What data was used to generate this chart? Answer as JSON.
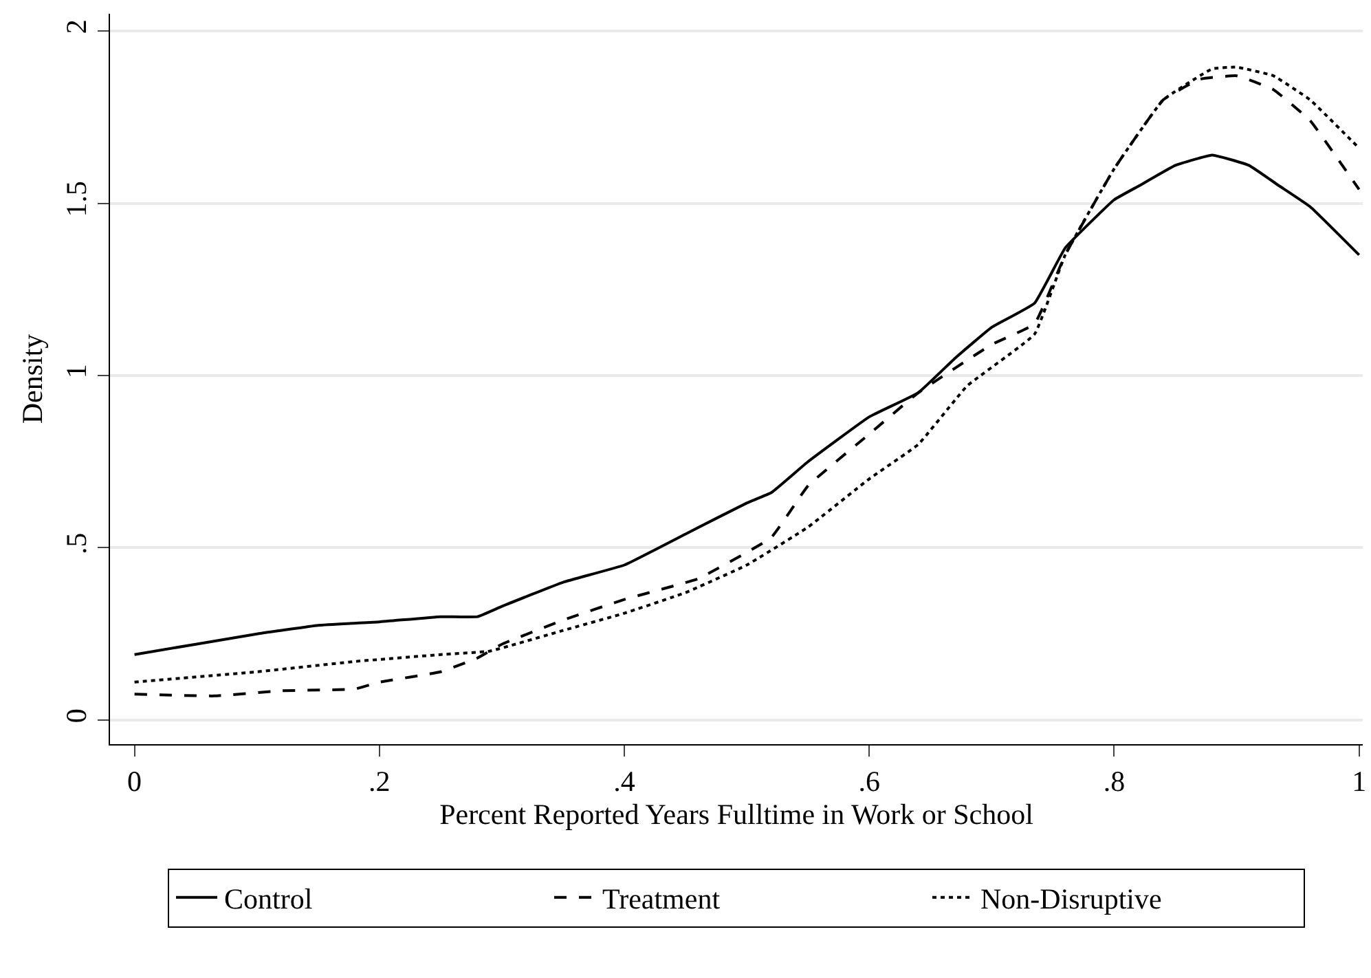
{
  "chart_data": {
    "type": "line",
    "xlabel": "Percent Reported Years Fulltime in Work or School",
    "ylabel": "Density",
    "xlim": [
      -0.02,
      1.003
    ],
    "xticks": [
      0,
      {
        "value": 0.2,
        "label": ".2"
      },
      {
        "value": 0.4,
        "label": ".4"
      },
      {
        "value": 0.6,
        "label": ".6"
      },
      {
        "value": 0.8,
        "label": ".8"
      },
      1
    ],
    "ylim": [
      -0.07,
      2.05
    ],
    "yticks": [
      0,
      {
        "value": 0.5,
        "label": ".5"
      },
      1,
      1.5,
      2
    ],
    "grid": "y",
    "legend": "bottom",
    "marker": "none",
    "series": [
      {
        "name": "Control",
        "color": "#000000",
        "line_style": "solid",
        "x": [
          0,
          0.05,
          0.1,
          0.15,
          0.2,
          0.25,
          0.28,
          0.3,
          0.35,
          0.4,
          0.45,
          0.5,
          0.52,
          0.55,
          0.6,
          0.64,
          0.67,
          0.7,
          0.735,
          0.76,
          0.8,
          0.82,
          0.85,
          0.88,
          0.91,
          0.935,
          0.96,
          1
        ],
        "values": [
          0.19,
          0.22,
          0.25,
          0.275,
          0.285,
          0.3,
          0.3,
          0.33,
          0.4,
          0.45,
          0.54,
          0.63,
          0.66,
          0.75,
          0.88,
          0.95,
          1.05,
          1.14,
          1.21,
          1.37,
          1.51,
          1.55,
          1.61,
          1.64,
          1.61,
          1.55,
          1.49,
          1.35
        ]
      },
      {
        "name": "Treatment",
        "color": "#000000",
        "line_style": "dashed",
        "x": [
          0,
          0.065,
          0.12,
          0.18,
          0.2,
          0.25,
          0.28,
          0.3,
          0.35,
          0.4,
          0.46,
          0.52,
          0.55,
          0.6,
          0.64,
          0.7,
          0.735,
          0.76,
          0.8,
          0.84,
          0.87,
          0.9,
          0.93,
          0.96,
          1
        ],
        "values": [
          0.075,
          0.07,
          0.085,
          0.09,
          0.11,
          0.14,
          0.18,
          0.22,
          0.29,
          0.35,
          0.41,
          0.53,
          0.68,
          0.83,
          0.95,
          1.09,
          1.15,
          1.35,
          1.6,
          1.8,
          1.86,
          1.87,
          1.83,
          1.74,
          1.54
        ]
      },
      {
        "name": "Non-Disruptive",
        "color": "#000000",
        "line_style": "dotted",
        "x": [
          0,
          0.1,
          0.18,
          0.25,
          0.29,
          0.35,
          0.4,
          0.45,
          0.5,
          0.55,
          0.6,
          0.64,
          0.68,
          0.735,
          0.76,
          0.8,
          0.84,
          0.88,
          0.9,
          0.93,
          0.96,
          1
        ],
        "values": [
          0.11,
          0.14,
          0.17,
          0.19,
          0.2,
          0.26,
          0.31,
          0.37,
          0.45,
          0.56,
          0.7,
          0.8,
          0.97,
          1.12,
          1.35,
          1.6,
          1.8,
          1.89,
          1.895,
          1.87,
          1.8,
          1.66
        ]
      }
    ]
  }
}
